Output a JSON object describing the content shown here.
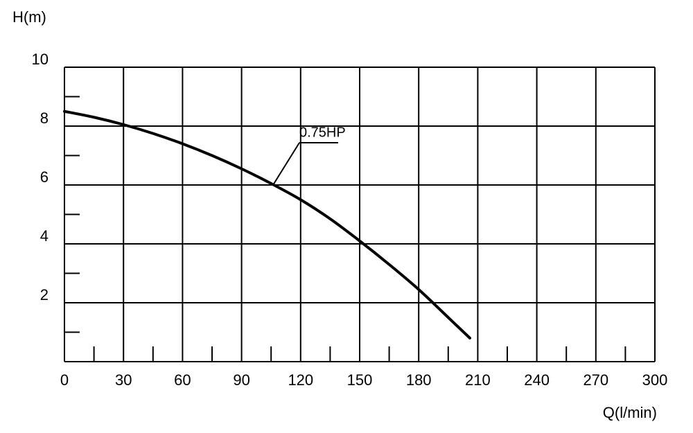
{
  "chart_data": {
    "type": "line",
    "x_label": "Q(l/min)",
    "y_label": "H(m)",
    "x": [
      0,
      15,
      30,
      45,
      60,
      75,
      90,
      105,
      120,
      135,
      150,
      165,
      180,
      195,
      206
    ],
    "series": [
      {
        "name": "0.75HP",
        "color": "#000000",
        "values": [
          8.5,
          8.3,
          8.05,
          7.75,
          7.4,
          7.0,
          6.55,
          6.05,
          5.5,
          4.85,
          4.1,
          3.3,
          2.45,
          1.5,
          0.8
        ]
      }
    ],
    "annotation": {
      "text": "0.75HP",
      "x": 106,
      "y": 6
    },
    "xlim": [
      0,
      300
    ],
    "ylim": [
      0,
      10
    ],
    "xticks": [
      0,
      30,
      60,
      90,
      120,
      150,
      180,
      210,
      240,
      270,
      300
    ],
    "yticks": [
      2,
      4,
      6,
      8,
      10
    ],
    "x_minor_ticks": [
      15,
      45,
      75,
      105,
      135,
      165,
      195,
      225,
      255,
      285
    ],
    "y_minor_ticks": [
      1,
      3,
      5,
      7,
      9
    ],
    "grid": true
  }
}
